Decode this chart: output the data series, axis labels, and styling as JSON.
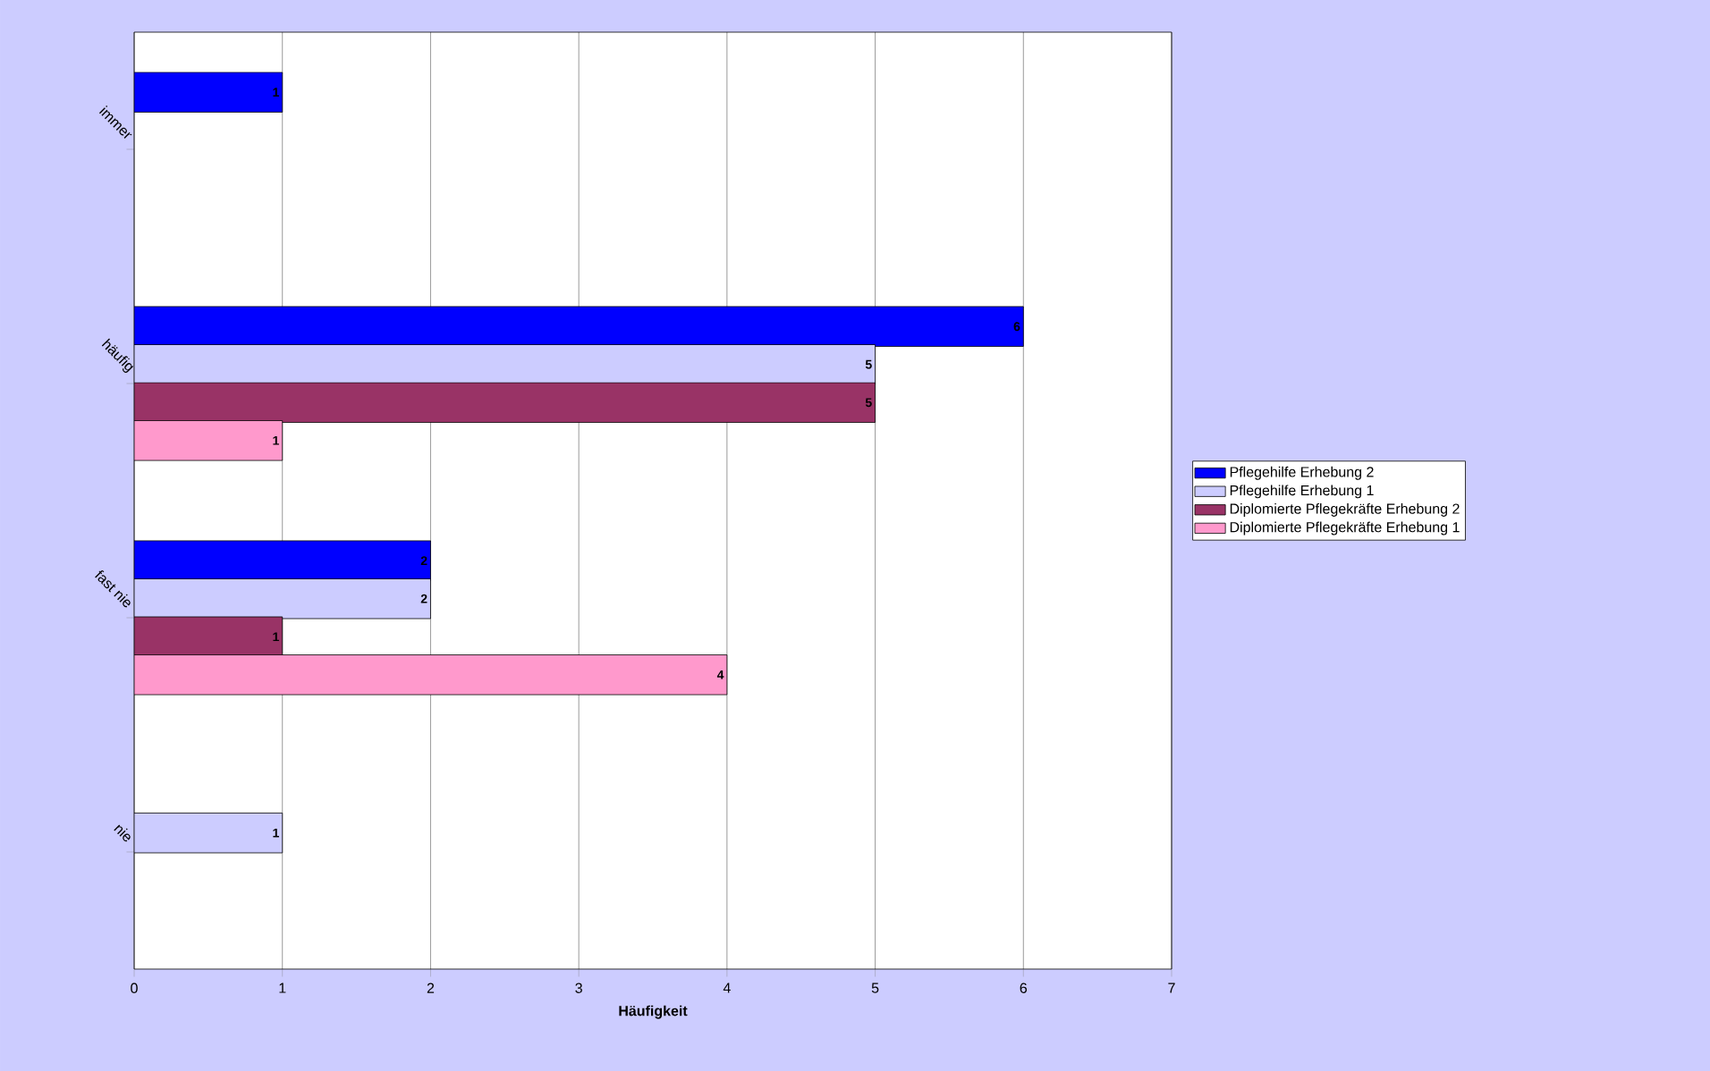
{
  "chart_data": {
    "type": "bar",
    "orientation": "horizontal",
    "categories": [
      "immer",
      "häufig",
      "fast nie",
      "nie"
    ],
    "series": [
      {
        "name": "Pflegehilfe Erhebung 2",
        "color": "#0000ff",
        "values": [
          1,
          6,
          2,
          null
        ]
      },
      {
        "name": "Pflegehilfe Erhebung 1",
        "color": "#ccccff",
        "values": [
          null,
          5,
          2,
          1
        ]
      },
      {
        "name": "Diplomierte Pflegekräfte Erhebung 2",
        "color": "#993366",
        "values": [
          null,
          5,
          1,
          null
        ]
      },
      {
        "name": "Diplomierte Pflegekräfte Erhebung 1",
        "color": "#ff99cc",
        "values": [
          null,
          1,
          4,
          null
        ]
      }
    ],
    "xlim": [
      0,
      7
    ],
    "xticks": [
      0,
      1,
      2,
      3,
      4,
      5,
      6,
      7
    ],
    "xlabel": "**Häufigkeit**",
    "data_labels": true,
    "grid": "x",
    "legend": "right"
  }
}
